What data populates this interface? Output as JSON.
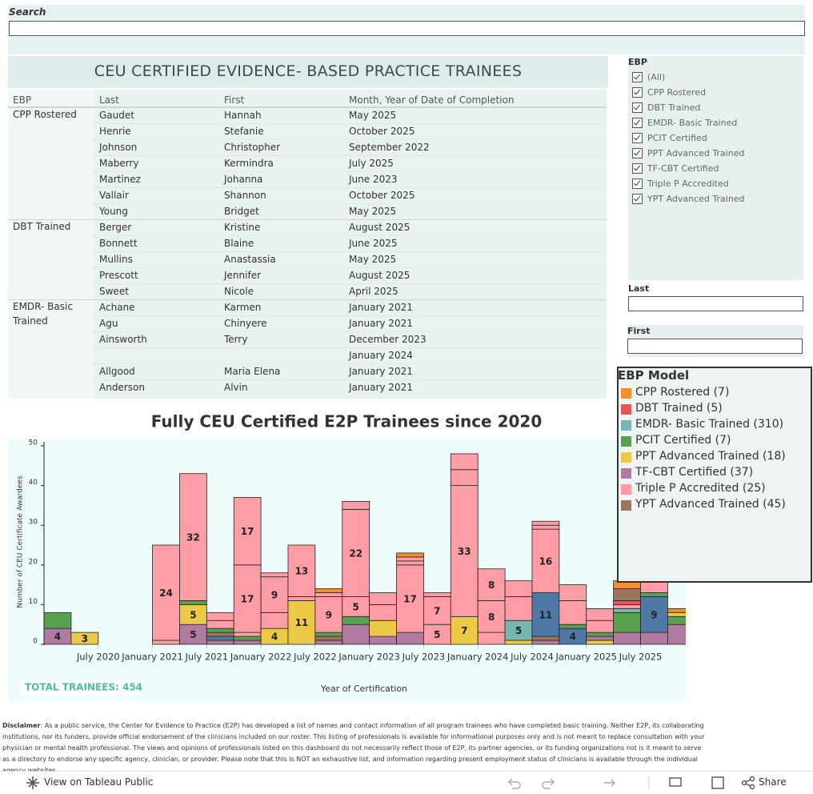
{
  "search": {
    "label": "Search"
  },
  "table": {
    "title": "CEU CERTIFIED EVIDENCE- BASED PRACTICE TRAINEES",
    "headers": [
      "EBP",
      "Last",
      "First",
      "Month, Year of Date of Completion"
    ],
    "rows": [
      [
        "CPP Rostered",
        "Gaudet",
        "Hannah",
        "May 2025"
      ],
      [
        null,
        "Henrie",
        "Stefanie",
        "October 2025"
      ],
      [
        null,
        "Johnson",
        "Christopher",
        "September 2022"
      ],
      [
        null,
        "Maberry",
        "Kermindra",
        "July 2025"
      ],
      [
        null,
        "Martinez",
        "Johanna",
        "June 2023"
      ],
      [
        null,
        "Vallair",
        "Shannon",
        "October 2025"
      ],
      [
        null,
        "Young",
        "Bridget",
        "May 2025"
      ],
      [
        "DBT Trained",
        "Berger",
        "Kristine",
        "August 2025"
      ],
      [
        null,
        "Bonnett",
        "Blaine",
        "June 2025"
      ],
      [
        null,
        "Mullins",
        "Anastassia",
        "May 2025"
      ],
      [
        null,
        "Prescott",
        "Jennifer",
        "August 2025"
      ],
      [
        null,
        "Sweet",
        "Nicole",
        "April 2025"
      ],
      [
        "EMDR- Basic Trained",
        "Achane",
        "Karmen",
        "January 2021"
      ],
      [
        null,
        "Agu",
        "Chinyere",
        "January 2021"
      ],
      [
        null,
        "Ainsworth",
        "Terry",
        "December 2023"
      ],
      [
        null,
        null,
        null,
        "January 2024"
      ],
      [
        null,
        "Allgood",
        "Maria Elena",
        "January 2021"
      ],
      [
        null,
        "Anderson",
        "Alvin",
        "January 2021"
      ]
    ]
  },
  "filters": {
    "ebp_label": "EBP",
    "ebp_options": [
      "(All)",
      "CPP Rostered",
      "DBT Trained",
      "EMDR- Basic Trained",
      "PCIT Certified",
      "PPT Advanced Trained",
      "TF-CBT Certified",
      "Triple P Accredited",
      "YPT Advanced Trained"
    ],
    "last_label": "Last",
    "first_label": "First"
  },
  "chart_data": {
    "type": "stacked-bar",
    "title": "Fully CEU Certified E2P Trainees since 2020",
    "y_label": "Number of CEU Certificate Awardees",
    "x_label": "Year of Certification",
    "total": "TOTAL TRAINEES: 454",
    "xlim": [
      "2020-01",
      "2025-12"
    ],
    "xticks": [
      {
        "value": "2020-07",
        "label": "July 2020"
      },
      {
        "value": "2021-01",
        "label": "January 2021"
      },
      {
        "value": "2021-07",
        "label": "July 2021"
      },
      {
        "value": "2022-01",
        "label": "January 2022"
      },
      {
        "value": "2022-07",
        "label": "July 2022"
      },
      {
        "value": "2023-01",
        "label": "January 2023"
      },
      {
        "value": "2023-07",
        "label": "July 2023"
      },
      {
        "value": "2024-01",
        "label": "January 2024"
      },
      {
        "value": "2024-07",
        "label": "July 2024"
      },
      {
        "value": "2025-01",
        "label": "January 2025"
      },
      {
        "value": "2025-07",
        "label": "July 2025"
      }
    ],
    "ylim": [
      0,
      50
    ],
    "yticks": [
      0,
      10,
      20,
      30,
      40,
      50
    ],
    "legend": {
      "title": "EBP Model",
      "items": [
        {
          "name": "CPP Rostered (7)",
          "color": "#f28e2b"
        },
        {
          "name": "DBT Trained (5)",
          "color": "#e15759"
        },
        {
          "name": "EMDR- Basic Trained (310)",
          "color": "#76b7b2"
        },
        {
          "name": "PCIT Certified (7)",
          "color": "#59a14f"
        },
        {
          "name": "PPT Advanced Trained (18)",
          "color": "#edc948"
        },
        {
          "name": "TF-CBT Certified (37)",
          "color": "#b07aa1"
        },
        {
          "name": "Triple P Accredited (25)",
          "color": "#ff9da7"
        },
        {
          "name": "YPT Advanced Trained (45)",
          "color": "#9c755f"
        }
      ]
    },
    "bars": [
      {
        "x": "2020-01",
        "segments": [
          {
            "color": "#b07aa1",
            "value": 4,
            "labeled": true
          },
          {
            "color": "#59a14f",
            "value": 4
          }
        ]
      },
      {
        "x": "2020-04",
        "segments": [
          {
            "color": "#edc948",
            "value": 3,
            "labeled": true
          }
        ]
      },
      {
        "x": "2020-07",
        "segments": []
      },
      {
        "x": "2020-10",
        "segments": []
      },
      {
        "x": "2021-01",
        "segments": [
          {
            "color": "#ff9da7",
            "value": 1
          },
          {
            "color": "#ff9da7",
            "value": 24,
            "labeled": true
          }
        ]
      },
      {
        "x": "2021-04",
        "segments": [
          {
            "color": "#b07aa1",
            "value": 5,
            "labeled": true
          },
          {
            "color": "#edc948",
            "value": 5,
            "labeled": true
          },
          {
            "color": "#59a14f",
            "value": 1
          },
          {
            "color": "#ff9da7",
            "value": 32,
            "labeled": true
          }
        ]
      },
      {
        "x": "2021-07",
        "segments": [
          {
            "color": "#b07aa1",
            "value": 1
          },
          {
            "color": "#4e79a7",
            "value": 1
          },
          {
            "color": "#9c755f",
            "value": 1
          },
          {
            "color": "#59a14f",
            "value": 1
          },
          {
            "color": "#ff9da7",
            "value": 2
          },
          {
            "color": "#ff9da7",
            "value": 2
          }
        ]
      },
      {
        "x": "2021-10",
        "segments": [
          {
            "color": "#b07aa1",
            "value": 1
          },
          {
            "color": "#59a14f",
            "value": 1
          },
          {
            "color": "#ff9da7",
            "value": 1
          },
          {
            "color": "#ff9da7",
            "value": 17,
            "labeled": true
          },
          {
            "color": "#ff9da7",
            "value": 17,
            "labeled": true
          }
        ]
      },
      {
        "x": "2022-01",
        "segments": [
          {
            "color": "#edc948",
            "value": 4,
            "labeled": true
          },
          {
            "color": "#ff9da7",
            "value": 4
          },
          {
            "color": "#ff9da7",
            "value": 9,
            "labeled": true
          },
          {
            "color": "#ff9da7",
            "value": 1
          }
        ]
      },
      {
        "x": "2022-04",
        "segments": [
          {
            "color": "#edc948",
            "value": 11,
            "labeled": true
          },
          {
            "color": "#ff9da7",
            "value": 1
          },
          {
            "color": "#ff9da7",
            "value": 13,
            "labeled": true
          }
        ]
      },
      {
        "x": "2022-07",
        "segments": [
          {
            "color": "#b07aa1",
            "value": 1
          },
          {
            "color": "#9c755f",
            "value": 1
          },
          {
            "color": "#59a14f",
            "value": 1
          },
          {
            "color": "#ff9da7",
            "value": 9,
            "labeled": true
          },
          {
            "color": "#ff9da7",
            "value": 1
          },
          {
            "color": "#f28e2b",
            "value": 1
          }
        ]
      },
      {
        "x": "2022-10",
        "segments": [
          {
            "color": "#b07aa1",
            "value": 5
          },
          {
            "color": "#59a14f",
            "value": 2
          },
          {
            "color": "#ff9da7",
            "value": 5,
            "labeled": true
          },
          {
            "color": "#ff9da7",
            "value": 22,
            "labeled": true
          },
          {
            "color": "#ff9da7",
            "value": 2
          }
        ]
      },
      {
        "x": "2023-01",
        "segments": [
          {
            "color": "#b07aa1",
            "value": 2
          },
          {
            "color": "#edc948",
            "value": 4
          },
          {
            "color": "#ff9da7",
            "value": 4
          },
          {
            "color": "#ff9da7",
            "value": 3
          }
        ]
      },
      {
        "x": "2023-04",
        "segments": [
          {
            "color": "#b07aa1",
            "value": 3
          },
          {
            "color": "#ff9da7",
            "value": 17,
            "labeled": true
          },
          {
            "color": "#ff9da7",
            "value": 1
          },
          {
            "color": "#ff9da7",
            "value": 1
          },
          {
            "color": "#f28e2b",
            "value": 1
          }
        ]
      },
      {
        "x": "2023-07",
        "segments": [
          {
            "color": "#ff9da7",
            "value": 5,
            "labeled": true
          },
          {
            "color": "#ff9da7",
            "value": 7,
            "labeled": true
          },
          {
            "color": "#ff9da7",
            "value": 1
          }
        ]
      },
      {
        "x": "2023-10",
        "segments": [
          {
            "color": "#edc948",
            "value": 7,
            "labeled": true
          },
          {
            "color": "#ff9da7",
            "value": 33,
            "labeled": true
          },
          {
            "color": "#ff9da7",
            "value": 4
          },
          {
            "color": "#ff9da7",
            "value": 4
          }
        ]
      },
      {
        "x": "2024-01",
        "segments": [
          {
            "color": "#ff9da7",
            "value": 3
          },
          {
            "color": "#ff9da7",
            "value": 8,
            "labeled": true
          },
          {
            "color": "#ff9da7",
            "value": 8,
            "labeled": true
          }
        ]
      },
      {
        "x": "2024-04",
        "segments": [
          {
            "color": "#edc948",
            "value": 1
          },
          {
            "color": "#76b7b2",
            "value": 5,
            "labeled": true
          },
          {
            "color": "#ff9da7",
            "value": 6
          },
          {
            "color": "#ff9da7",
            "value": 4
          }
        ]
      },
      {
        "x": "2024-07",
        "segments": [
          {
            "color": "#b07aa1",
            "value": 1
          },
          {
            "color": "#9c755f",
            "value": 1
          },
          {
            "color": "#4e79a7",
            "value": 11,
            "labeled": true
          },
          {
            "color": "#ff9da7",
            "value": 16,
            "labeled": true
          },
          {
            "color": "#ff9da7",
            "value": 1
          },
          {
            "color": "#ff9da7",
            "value": 1
          }
        ]
      },
      {
        "x": "2024-10",
        "segments": [
          {
            "color": "#4e79a7",
            "value": 4,
            "labeled": true
          },
          {
            "color": "#59a14f",
            "value": 1
          },
          {
            "color": "#ff9da7",
            "value": 6
          },
          {
            "color": "#ff9da7",
            "value": 4
          }
        ]
      },
      {
        "x": "2025-01",
        "segments": [
          {
            "color": "#edc948",
            "value": 1
          },
          {
            "color": "#b07aa1",
            "value": 1
          },
          {
            "color": "#59a14f",
            "value": 1
          },
          {
            "color": "#ff9da7",
            "value": 3
          },
          {
            "color": "#ff9da7",
            "value": 3
          }
        ]
      },
      {
        "x": "2025-04",
        "segments": [
          {
            "color": "#b07aa1",
            "value": 3
          },
          {
            "color": "#59a14f",
            "value": 5
          },
          {
            "color": "#76b7b2",
            "value": 1
          },
          {
            "color": "#ff9da7",
            "value": 1
          },
          {
            "color": "#e15759",
            "value": 1
          },
          {
            "color": "#9c755f",
            "value": 3
          },
          {
            "color": "#f28e2b",
            "value": 2
          }
        ]
      },
      {
        "x": "2025-07",
        "segments": [
          {
            "color": "#b07aa1",
            "value": 3
          },
          {
            "color": "#4e79a7",
            "value": 9,
            "labeled": true
          },
          {
            "color": "#59a14f",
            "value": 1
          },
          {
            "color": "#ff9da7",
            "value": 3
          }
        ]
      },
      {
        "x": "2025-10",
        "segments": [
          {
            "color": "#b07aa1",
            "value": 5
          },
          {
            "color": "#59a14f",
            "value": 2
          },
          {
            "color": "#edc948",
            "value": 1
          },
          {
            "color": "#f28e2b",
            "value": 1
          }
        ]
      }
    ]
  },
  "disclaimer": {
    "lead": "Disclaimer",
    "text": ": As a public service, the Center for Evidence to Practice (E2P) has developed a list of names and contact information of all program trainees who have completed basic training. Neither E2P, its collaborating institutions, nor its funders, provide official endorsement of the clinicians included on our roster. This listing of professionals is available for informational purposes only and is not meant to replace consultation with your physician or mental health professional. The views and opinions of professionals listed on this dashboard do not necessarily reflect those of E2P, its partner agencies, or its funding organizations not is it meant to serve as a directory to endorse any specific agency, clinician, or provider. Please note that this is NOT an exhaustive list, and information regarding present employment status of clinicians is available through the individual agency websites."
  },
  "footer": {
    "view": "View on Tableau Public",
    "share": "Share"
  }
}
